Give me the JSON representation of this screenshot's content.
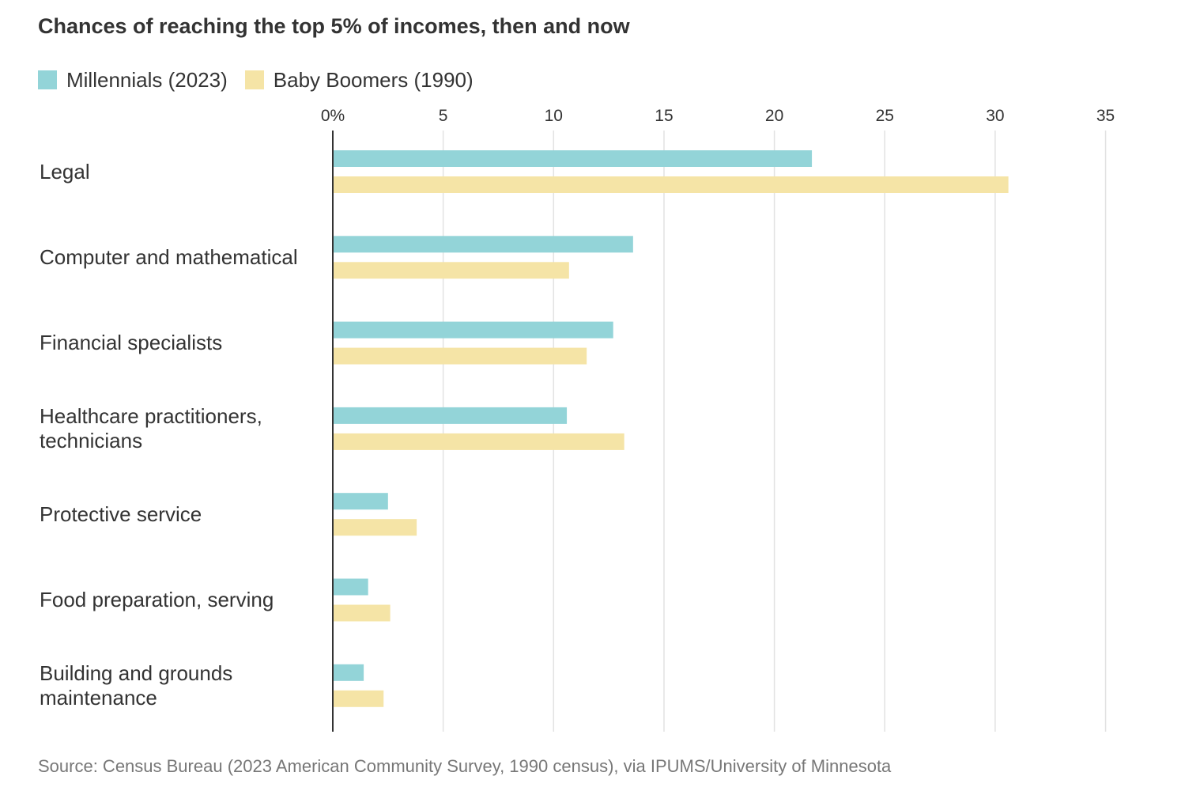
{
  "chart_data": {
    "type": "bar",
    "orientation": "horizontal",
    "title": "Chances of reaching the top 5% of incomes, then and now",
    "categories": [
      "Legal",
      "Computer and mathematical",
      "Financial specialists",
      "Healthcare practitioners, technicians",
      "Protective service",
      "Food preparation, serving",
      "Building and grounds maintenance"
    ],
    "series": [
      {
        "name": "Millennials (2023)",
        "color": "#93d4d8",
        "values": [
          21.7,
          13.6,
          12.7,
          10.6,
          2.5,
          1.6,
          1.4
        ]
      },
      {
        "name": "Baby Boomers (1990)",
        "color": "#f5e4a6",
        "values": [
          30.6,
          10.7,
          11.5,
          13.2,
          3.8,
          2.6,
          2.3
        ]
      }
    ],
    "xlim": [
      0,
      35
    ],
    "xticks": [
      "0%",
      "5",
      "10",
      "15",
      "20",
      "25",
      "30",
      "35"
    ],
    "xtick_values": [
      0,
      5,
      10,
      15,
      20,
      25,
      30,
      35
    ],
    "grid": true,
    "legend_position": "top-left"
  },
  "source": "Source: Census Bureau (2023 American Community Survey, 1990 census), via IPUMS/University of Minnesota"
}
